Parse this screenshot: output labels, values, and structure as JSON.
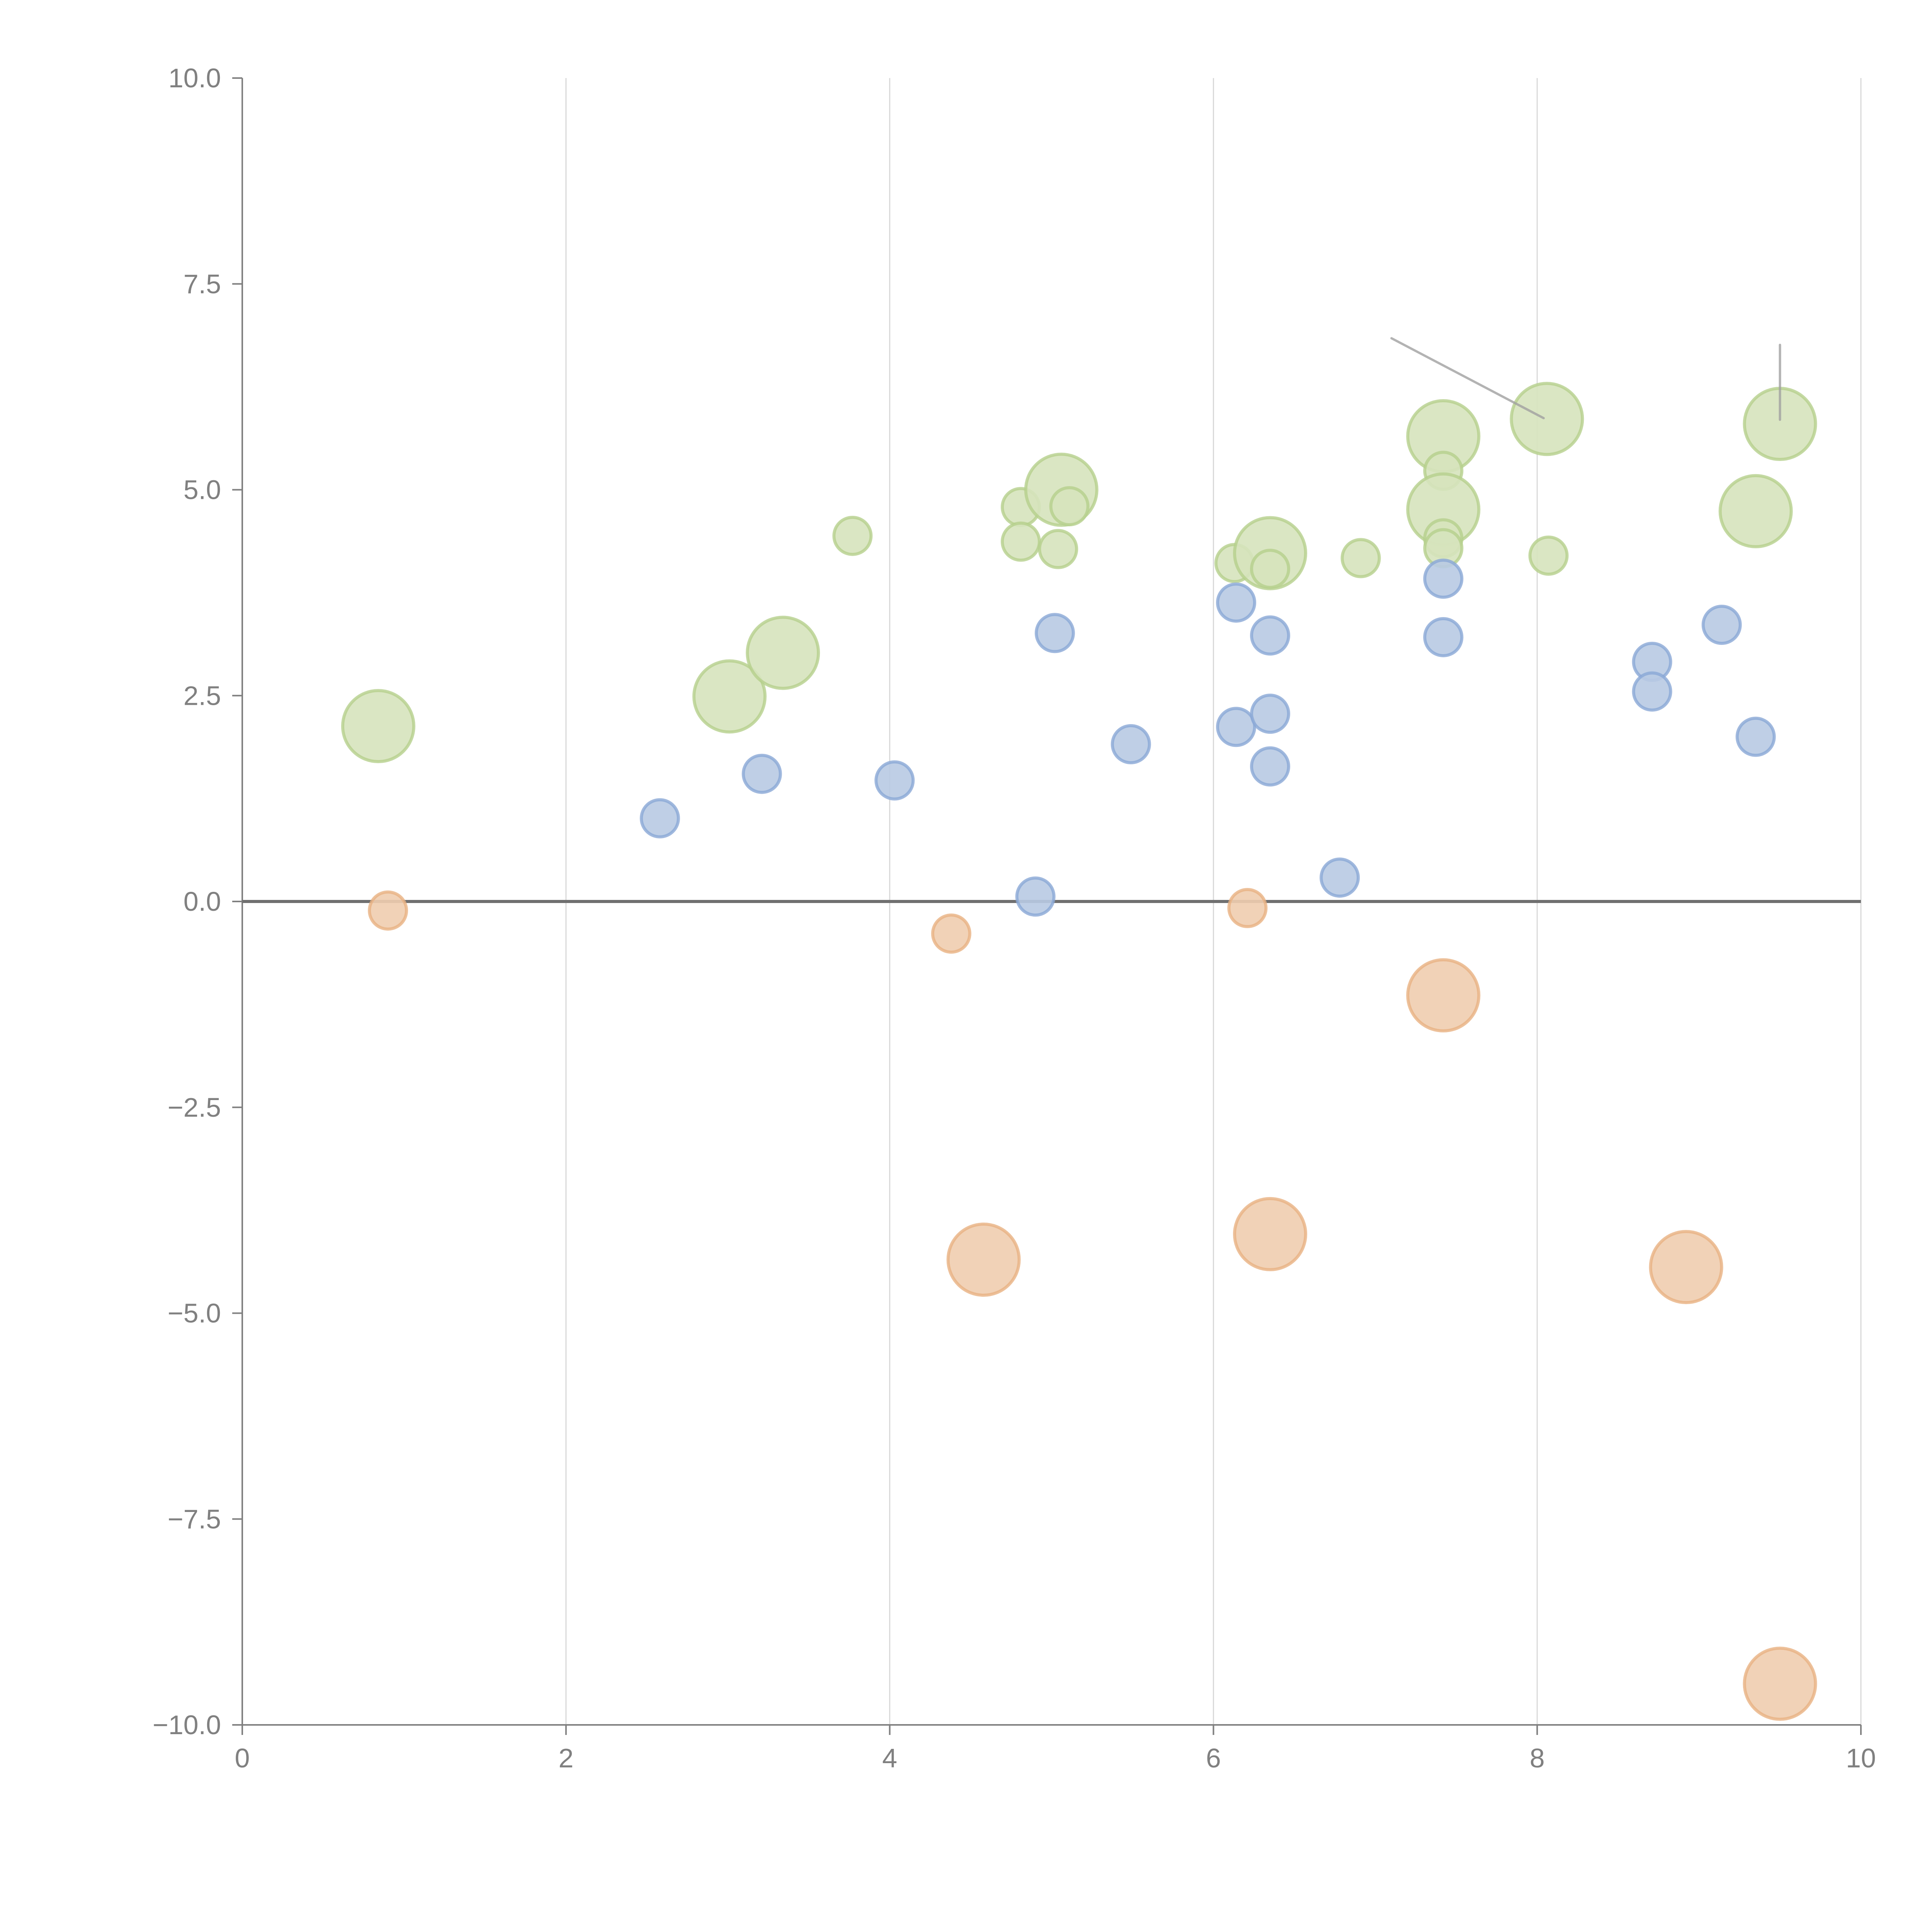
{
  "chart_data": {
    "type": "scatter",
    "title": "",
    "xlabel": "",
    "ylabel": "",
    "xlim": [
      0,
      10
    ],
    "ylim": [
      -10,
      10
    ],
    "x_ticks": [
      "0",
      "2",
      "4",
      "6",
      "8",
      "10"
    ],
    "x_tick_values": [
      0,
      2,
      4,
      6,
      8,
      10
    ],
    "y_ticks": [
      "10.0",
      "7.5",
      "5.0",
      "2.5",
      "0.0",
      "−2.5",
      "−5.0",
      "−7.5",
      "−10.0"
    ],
    "y_tick_values": [
      10,
      7.5,
      5,
      2.5,
      0,
      -2.5,
      -5,
      -7.5,
      -10
    ],
    "grid": "vertical",
    "zero_line": true,
    "legend": "none",
    "size_note": "bubble size: 1 = small, 2 = large",
    "series": [
      {
        "name": "green",
        "fill": "#d6e3bc",
        "stroke": "#b5cf8c",
        "points": [
          {
            "x": 0.84,
            "y": 2.13,
            "size": 2
          },
          {
            "x": 3.01,
            "y": 2.49,
            "size": 2
          },
          {
            "x": 3.34,
            "y": 3.02,
            "size": 2
          },
          {
            "x": 3.77,
            "y": 4.44,
            "size": 1
          },
          {
            "x": 4.81,
            "y": 4.79,
            "size": 1
          },
          {
            "x": 4.81,
            "y": 4.37,
            "size": 1
          },
          {
            "x": 5.06,
            "y": 5.0,
            "size": 2
          },
          {
            "x": 5.11,
            "y": 4.8,
            "size": 1
          },
          {
            "x": 5.04,
            "y": 4.28,
            "size": 1
          },
          {
            "x": 6.13,
            "y": 4.11,
            "size": 1
          },
          {
            "x": 6.35,
            "y": 4.23,
            "size": 2
          },
          {
            "x": 6.35,
            "y": 4.04,
            "size": 1
          },
          {
            "x": 6.91,
            "y": 4.17,
            "size": 1
          },
          {
            "x": 7.42,
            "y": 5.65,
            "size": 2
          },
          {
            "x": 7.42,
            "y": 5.23,
            "size": 1
          },
          {
            "x": 7.42,
            "y": 4.76,
            "size": 2
          },
          {
            "x": 7.42,
            "y": 4.41,
            "size": 1
          },
          {
            "x": 7.42,
            "y": 4.29,
            "size": 1
          },
          {
            "x": 8.06,
            "y": 5.86,
            "size": 2
          },
          {
            "x": 8.07,
            "y": 4.2,
            "size": 1
          },
          {
            "x": 9.5,
            "y": 5.8,
            "size": 2
          },
          {
            "x": 9.35,
            "y": 4.74,
            "size": 2
          }
        ]
      },
      {
        "name": "blue",
        "fill": "#b8cae3",
        "stroke": "#8aa8d6",
        "points": [
          {
            "x": 2.58,
            "y": 1.01,
            "size": 1
          },
          {
            "x": 3.21,
            "y": 1.55,
            "size": 1
          },
          {
            "x": 4.03,
            "y": 1.47,
            "size": 1
          },
          {
            "x": 4.9,
            "y": 0.06,
            "size": 1
          },
          {
            "x": 5.02,
            "y": 3.26,
            "size": 1
          },
          {
            "x": 5.49,
            "y": 1.91,
            "size": 1
          },
          {
            "x": 6.14,
            "y": 3.63,
            "size": 1
          },
          {
            "x": 6.14,
            "y": 2.12,
            "size": 1
          },
          {
            "x": 6.35,
            "y": 3.23,
            "size": 1
          },
          {
            "x": 6.35,
            "y": 2.28,
            "size": 1
          },
          {
            "x": 6.35,
            "y": 1.64,
            "size": 1
          },
          {
            "x": 6.78,
            "y": 0.29,
            "size": 1
          },
          {
            "x": 7.42,
            "y": 3.92,
            "size": 1
          },
          {
            "x": 7.42,
            "y": 3.21,
            "size": 1
          },
          {
            "x": 8.71,
            "y": 2.91,
            "size": 1
          },
          {
            "x": 8.71,
            "y": 2.55,
            "size": 1
          },
          {
            "x": 9.14,
            "y": 3.36,
            "size": 1
          },
          {
            "x": 9.35,
            "y": 2.0,
            "size": 1
          }
        ]
      },
      {
        "name": "orange",
        "fill": "#f0cdaf",
        "stroke": "#e8b282",
        "points": [
          {
            "x": 0.9,
            "y": -0.11,
            "size": 1
          },
          {
            "x": 4.38,
            "y": -0.39,
            "size": 1
          },
          {
            "x": 6.21,
            "y": -0.08,
            "size": 1
          },
          {
            "x": 7.42,
            "y": -1.14,
            "size": 2
          },
          {
            "x": 4.58,
            "y": -4.35,
            "size": 2
          },
          {
            "x": 6.35,
            "y": -4.04,
            "size": 2
          },
          {
            "x": 8.92,
            "y": -4.44,
            "size": 2
          },
          {
            "x": 9.5,
            "y": -9.5,
            "size": 2
          }
        ]
      }
    ],
    "annotation_lines": [
      {
        "from": {
          "x": 7.1,
          "y": 6.84
        },
        "to": {
          "x": 8.04,
          "y": 5.87
        }
      },
      {
        "from": {
          "x": 9.5,
          "y": 6.76
        },
        "to": {
          "x": 9.5,
          "y": 5.85
        }
      }
    ]
  }
}
